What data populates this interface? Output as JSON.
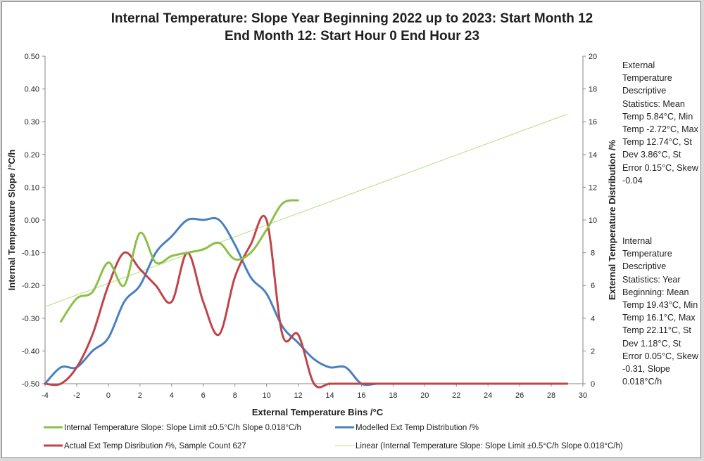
{
  "chart_data": {
    "type": "line",
    "title_line1": "Internal Temperature: Slope Year Beginning 2022 up to 2023: Start Month 12",
    "title_line2": "End Month 12: Start Hour 0 End Hour 23",
    "xlabel": "External Temperature Bins /°C",
    "ylabel": "Internal Temperature Slope /°C/h",
    "y2label": "External Temperature Distribution /%",
    "xlim": [
      -4,
      30
    ],
    "ylim": [
      -0.5,
      0.5
    ],
    "y2lim": [
      0,
      20
    ],
    "x_ticks": [
      "-4",
      "-2",
      "0",
      "2",
      "4",
      "6",
      "8",
      "10",
      "12",
      "14",
      "16",
      "18",
      "20",
      "22",
      "24",
      "26",
      "28",
      "30"
    ],
    "y_ticks": [
      "-0.50",
      "-0.40",
      "-0.30",
      "-0.20",
      "-0.10",
      "0.00",
      "0.10",
      "0.20",
      "0.30",
      "0.40",
      "0.50"
    ],
    "y2_ticks": [
      "0",
      "2",
      "4",
      "6",
      "8",
      "10",
      "12",
      "14",
      "16",
      "18",
      "20"
    ],
    "series": [
      {
        "name": "Internal Temperature Slope: Slope Limit ±0.5°C/h Slope 0.018°C/h",
        "axis": "left",
        "color": "#8cbf49",
        "points": [
          [
            -3,
            -0.31
          ],
          [
            -2,
            -0.24
          ],
          [
            -1,
            -0.22
          ],
          [
            0,
            -0.13
          ],
          [
            1,
            -0.2
          ],
          [
            2,
            -0.04
          ],
          [
            3,
            -0.13
          ],
          [
            4,
            -0.11
          ],
          [
            5,
            -0.1
          ],
          [
            6,
            -0.09
          ],
          [
            7,
            -0.07
          ],
          [
            8,
            -0.12
          ],
          [
            9,
            -0.1
          ],
          [
            10,
            -0.03
          ],
          [
            11,
            0.05
          ],
          [
            12,
            0.06
          ]
        ]
      },
      {
        "name": "Modelled Ext Temp Distribution /%",
        "axis": "right",
        "color": "#4a7fc1",
        "points": [
          [
            -4,
            0
          ],
          [
            -3,
            1
          ],
          [
            -2,
            1
          ],
          [
            -1,
            2
          ],
          [
            0,
            2.8
          ],
          [
            1,
            5
          ],
          [
            2,
            6
          ],
          [
            3,
            8
          ],
          [
            4,
            9
          ],
          [
            5,
            10
          ],
          [
            6,
            10
          ],
          [
            7,
            10
          ],
          [
            8,
            8.5
          ],
          [
            9,
            6.5
          ],
          [
            10,
            5.5
          ],
          [
            11,
            3.5
          ],
          [
            12,
            2.5
          ],
          [
            13,
            1.5
          ],
          [
            14,
            1
          ],
          [
            15,
            1
          ],
          [
            16,
            0
          ],
          [
            17,
            0
          ],
          [
            18,
            0
          ],
          [
            19,
            0
          ],
          [
            20,
            0
          ],
          [
            21,
            0
          ],
          [
            22,
            0
          ],
          [
            23,
            0
          ],
          [
            24,
            0
          ],
          [
            25,
            0
          ],
          [
            26,
            0
          ],
          [
            27,
            0
          ],
          [
            28,
            0
          ],
          [
            29,
            0
          ]
        ]
      },
      {
        "name": "Actual Ext Temp Disribution /%, Sample Count 627",
        "axis": "right",
        "color": "#c0444a",
        "points": [
          [
            -4,
            0
          ],
          [
            -3,
            0
          ],
          [
            -2,
            1
          ],
          [
            -1,
            3
          ],
          [
            0,
            6
          ],
          [
            1,
            8
          ],
          [
            2,
            7
          ],
          [
            3,
            6
          ],
          [
            4,
            5
          ],
          [
            5,
            8
          ],
          [
            6,
            5
          ],
          [
            7,
            3
          ],
          [
            8,
            6.5
          ],
          [
            9,
            8.5
          ],
          [
            10,
            10
          ],
          [
            11,
            3
          ],
          [
            12,
            3
          ],
          [
            13,
            0
          ],
          [
            14,
            0
          ],
          [
            15,
            0
          ],
          [
            16,
            0
          ],
          [
            17,
            0
          ],
          [
            18,
            0
          ],
          [
            19,
            0
          ],
          [
            20,
            0
          ],
          [
            21,
            0
          ],
          [
            22,
            0
          ],
          [
            23,
            0
          ],
          [
            24,
            0
          ],
          [
            25,
            0
          ],
          [
            26,
            0
          ],
          [
            27,
            0
          ],
          [
            28,
            0
          ],
          [
            29,
            0
          ]
        ]
      },
      {
        "name": "Linear (Internal Temperature Slope: Slope Limit ±0.5°C/h Slope 0.018°C/h)",
        "axis": "left",
        "color": "#b3e07a",
        "trend": true,
        "points": [
          [
            -4,
            -0.265
          ],
          [
            29,
            0.323
          ]
        ]
      }
    ],
    "grid": false,
    "legend_position": "bottom"
  },
  "stats_ext": "External Temperature Descriptive Statistics: Mean Temp 5.84°C, Min Temp -2.72°C, Max Temp 12.74°C, St Dev 3.86°C, St Error 0.15°C, Skew -0.04",
  "stats_int": "Internal Temperature Descriptive Statistics: Year Beginning: Mean Temp 19.43°C, Min Temp 16.1°C, Max Temp 22.11°C, St Dev 1.18°C, St Error 0.05°C, Skew -0.31, Slope 0.018°C/h"
}
